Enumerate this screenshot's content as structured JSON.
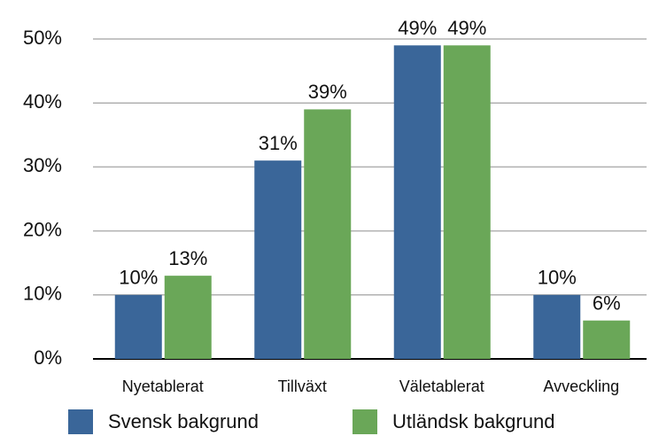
{
  "chart_data": {
    "type": "bar",
    "categories": [
      "Nyetablerat",
      "Tillväxt",
      "Väletablerat",
      "Avveckling"
    ],
    "series": [
      {
        "name": "Svensk bakgrund",
        "color": "#3a6699",
        "values": [
          10,
          31,
          49,
          10
        ],
        "value_labels": [
          "10%",
          "31%",
          "49%",
          "10%"
        ]
      },
      {
        "name": "Utländsk bakgrund",
        "color": "#6aa758",
        "values": [
          13,
          39,
          49,
          6
        ],
        "value_labels": [
          "13%",
          "39%",
          "49%",
          "6%"
        ]
      }
    ],
    "ylim": [
      0,
      50
    ],
    "yticks": [
      {
        "value": 0,
        "label": "0%"
      },
      {
        "value": 10,
        "label": "10%"
      },
      {
        "value": 20,
        "label": "20%"
      },
      {
        "value": 30,
        "label": "30%"
      },
      {
        "value": 40,
        "label": "40%"
      },
      {
        "value": 50,
        "label": "50%"
      }
    ],
    "grid": true
  }
}
